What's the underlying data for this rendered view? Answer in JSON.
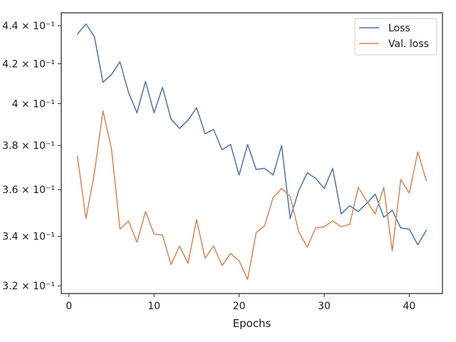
{
  "chart_data": {
    "type": "line",
    "title": "",
    "xlabel": "Epochs",
    "ylabel": "",
    "yscale": "log",
    "xlim": [
      -0.9,
      43.9
    ],
    "ylim": [
      0.317,
      0.447
    ],
    "grid": false,
    "legend_position": "top-right",
    "x_ticks": [
      0,
      10,
      20,
      30,
      40
    ],
    "x_tick_labels": [
      "0",
      "10",
      "20",
      "30",
      "40"
    ],
    "y_ticks": [
      0.32,
      0.34,
      0.36,
      0.38,
      0.4,
      0.42,
      0.44
    ],
    "y_tick_labels": [
      "3.2 × 10⁻¹",
      "3.4 × 10⁻¹",
      "3.6 × 10⁻¹",
      "3.8 × 10⁻¹",
      "4 × 10⁻¹",
      "4.2 × 10⁻¹",
      "4.4 × 10⁻¹"
    ],
    "x": [
      1,
      2,
      3,
      4,
      5,
      6,
      7,
      8,
      9,
      10,
      11,
      12,
      13,
      14,
      15,
      16,
      17,
      18,
      19,
      20,
      21,
      22,
      23,
      24,
      25,
      26,
      27,
      28,
      29,
      30,
      31,
      32,
      33,
      34,
      35,
      36,
      37,
      38,
      39,
      40,
      41,
      42
    ],
    "series": [
      {
        "name": "Loss",
        "color": "#4c72b0",
        "values": [
          0.4355,
          0.441,
          0.434,
          0.4105,
          0.4145,
          0.421,
          0.4055,
          0.3955,
          0.411,
          0.3955,
          0.408,
          0.3925,
          0.388,
          0.392,
          0.398,
          0.3855,
          0.3875,
          0.378,
          0.3805,
          0.3665,
          0.3805,
          0.369,
          0.3695,
          0.3665,
          0.38,
          0.3475,
          0.3595,
          0.3675,
          0.365,
          0.3605,
          0.3695,
          0.3495,
          0.353,
          0.3505,
          0.354,
          0.358,
          0.348,
          0.351,
          0.3435,
          0.343,
          0.3365,
          0.3425
        ]
      },
      {
        "name": "Val. loss",
        "color": "#dd8452",
        "values": [
          0.375,
          0.3475,
          0.3675,
          0.3965,
          0.3785,
          0.343,
          0.3465,
          0.3375,
          0.3505,
          0.341,
          0.3405,
          0.3285,
          0.336,
          0.329,
          0.347,
          0.331,
          0.336,
          0.328,
          0.333,
          0.33,
          0.3225,
          0.3415,
          0.3445,
          0.3565,
          0.3605,
          0.357,
          0.342,
          0.3355,
          0.3435,
          0.344,
          0.3465,
          0.344,
          0.345,
          0.361,
          0.355,
          0.3495,
          0.361,
          0.334,
          0.3645,
          0.3585,
          0.377,
          0.364
        ]
      }
    ]
  }
}
